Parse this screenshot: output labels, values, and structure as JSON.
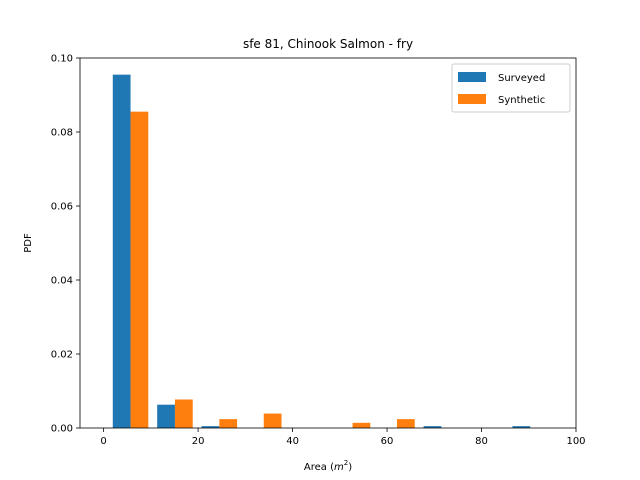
{
  "chart_data": {
    "type": "bar",
    "title": "sfe 81, Chinook Salmon - fry",
    "xlabel": "Area (",
    "xlabel_math": "m",
    "xlabel_sup": "2",
    "xlabel_end": ")",
    "ylabel": "PDF",
    "xlim": [
      -5,
      100
    ],
    "ylim": [
      0,
      0.1
    ],
    "xticks": [
      0,
      20,
      40,
      60,
      80,
      100
    ],
    "xtick_labels": [
      "0",
      "20",
      "40",
      "60",
      "80",
      "100"
    ],
    "yticks": [
      0,
      0.02,
      0.04,
      0.06,
      0.08,
      0.1
    ],
    "ytick_labels": [
      "0.00",
      "0.02",
      "0.04",
      "0.06",
      "0.08",
      "0.10"
    ],
    "bin_edges": [
      1,
      10.4,
      19.8,
      29.2,
      38.6,
      48,
      57.4,
      66.8,
      76.2,
      85.6,
      95
    ],
    "legend_position": "top-right",
    "series": [
      {
        "name": "Surveyed",
        "color": "#1f77b4",
        "offset": "left",
        "values": [
          0.0955,
          0.0063,
          0.0005,
          0,
          0,
          0,
          0,
          0.0005,
          0,
          0.0005
        ]
      },
      {
        "name": "Synthetic",
        "color": "#ff7f0e",
        "offset": "right",
        "values": [
          0.0855,
          0.0077,
          0.0024,
          0.0039,
          0,
          0.0014,
          0.0024,
          0,
          0,
          0
        ]
      }
    ]
  }
}
